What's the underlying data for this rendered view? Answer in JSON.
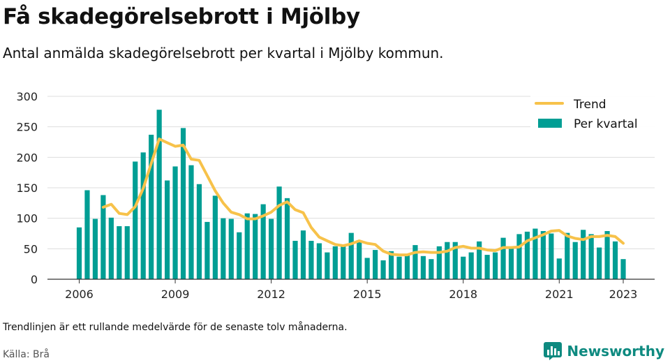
{
  "header": {
    "title": "Få skadegörelsebrott i Mjölby",
    "subtitle": "Antal anmälda skadegörelsebrott per kvartal i Mjölby kommun."
  },
  "footer": {
    "note": "Trendlinjen är ett rullande medelvärde för de senaste tolv månaderna.",
    "source": "Källa: Brå",
    "brand": "Newsworthy",
    "brand_icon": "newsworthy-logo-icon"
  },
  "colors": {
    "bars": "#009e94",
    "trend": "#f7c24a",
    "brand": "#0e8a80"
  },
  "chart_data": {
    "type": "bar",
    "title": "",
    "xlabel": "",
    "ylabel": "",
    "ylim": [
      0,
      300
    ],
    "yticks": [
      0,
      50,
      100,
      150,
      200,
      250,
      300
    ],
    "xticks": [
      "2006",
      "2009",
      "2012",
      "2015",
      "2018",
      "2021",
      "2023"
    ],
    "grid": true,
    "legend_position": "top-right",
    "categories": [
      "2006 Q1",
      "2006 Q2",
      "2006 Q3",
      "2006 Q4",
      "2007 Q1",
      "2007 Q2",
      "2007 Q3",
      "2007 Q4",
      "2008 Q1",
      "2008 Q2",
      "2008 Q3",
      "2008 Q4",
      "2009 Q1",
      "2009 Q2",
      "2009 Q3",
      "2009 Q4",
      "2010 Q1",
      "2010 Q2",
      "2010 Q3",
      "2010 Q4",
      "2011 Q1",
      "2011 Q2",
      "2011 Q3",
      "2011 Q4",
      "2012 Q1",
      "2012 Q2",
      "2012 Q3",
      "2012 Q4",
      "2013 Q1",
      "2013 Q2",
      "2013 Q3",
      "2013 Q4",
      "2014 Q1",
      "2014 Q2",
      "2014 Q3",
      "2014 Q4",
      "2015 Q1",
      "2015 Q2",
      "2015 Q3",
      "2015 Q4",
      "2016 Q1",
      "2016 Q2",
      "2016 Q3",
      "2016 Q4",
      "2017 Q1",
      "2017 Q2",
      "2017 Q3",
      "2017 Q4",
      "2018 Q1",
      "2018 Q2",
      "2018 Q3",
      "2018 Q4",
      "2019 Q1",
      "2019 Q2",
      "2019 Q3",
      "2019 Q4",
      "2020 Q1",
      "2020 Q2",
      "2020 Q3",
      "2020 Q4",
      "2021 Q1",
      "2021 Q2",
      "2021 Q3",
      "2021 Q4",
      "2022 Q1",
      "2022 Q2",
      "2022 Q3",
      "2022 Q4",
      "2023 Q1"
    ],
    "series": [
      {
        "name": "Per kvartal",
        "kind": "bar",
        "values": [
          85,
          146,
          99,
          138,
          101,
          87,
          87,
          193,
          208,
          237,
          278,
          162,
          185,
          248,
          187,
          156,
          94,
          137,
          100,
          99,
          77,
          108,
          107,
          123,
          99,
          152,
          133,
          63,
          80,
          63,
          59,
          44,
          54,
          55,
          76,
          64,
          35,
          48,
          31,
          46,
          37,
          39,
          56,
          38,
          33,
          54,
          61,
          61,
          37,
          44,
          62,
          40,
          44,
          68,
          51,
          74,
          78,
          83,
          79,
          75,
          34,
          76,
          61,
          81,
          74,
          52,
          79,
          62,
          33
        ]
      },
      {
        "name": "Trend",
        "kind": "line",
        "values": [
          null,
          null,
          null,
          118,
          123,
          108,
          106,
          119,
          149,
          190,
          230,
          224,
          218,
          220,
          197,
          195,
          170,
          145,
          125,
          110,
          106,
          99,
          99,
          104,
          110,
          121,
          127,
          114,
          109,
          85,
          69,
          63,
          57,
          55,
          58,
          63,
          59,
          57,
          46,
          41,
          40,
          40,
          44,
          45,
          44,
          44,
          46,
          52,
          54,
          51,
          51,
          48,
          47,
          52,
          52,
          53,
          63,
          68,
          73,
          79,
          80,
          71,
          67,
          65,
          70,
          70,
          72,
          70,
          59
        ]
      }
    ]
  }
}
